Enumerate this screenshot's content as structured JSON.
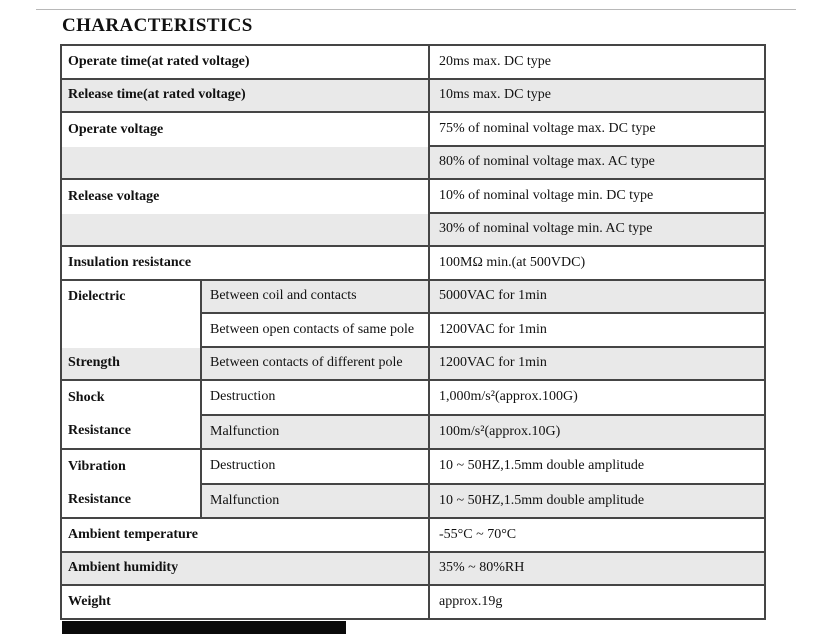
{
  "page": {
    "title": "CHARACTERISTICS"
  },
  "colors": {
    "row_shade": "#e9e9e9",
    "table_border": "#454545",
    "bottom_bar": "#0a0a0a",
    "text": "#111111"
  },
  "table": {
    "rows": [
      {
        "label": "Operate time(at rated voltage)",
        "value": "20ms max. DC type"
      },
      {
        "label": "Release time(at rated voltage)",
        "value": "10ms max. DC type"
      },
      {
        "label": "Operate voltage",
        "value": "75% of nominal voltage max. DC type"
      },
      {
        "label": "",
        "value": "80% of nominal voltage max. AC type"
      },
      {
        "label": "Release voltage",
        "value": "10% of nominal voltage min. DC type"
      },
      {
        "label": "",
        "value": "30% of nominal voltage min. AC type"
      },
      {
        "label": "Insulation resistance",
        "value": "100MΩ min.(at 500VDC)"
      },
      {
        "label": "Dielectric",
        "sub": "Between coil and contacts",
        "value": "5000VAC for 1min"
      },
      {
        "sub": "Between open contacts of same pole",
        "value": "1200VAC for 1min"
      },
      {
        "label": "Strength",
        "sub": "Between contacts of different pole",
        "value": "1200VAC for 1min"
      },
      {
        "label": "Shock",
        "label2": "Resistance",
        "sub": "Destruction",
        "value": "1,000m/s²(approx.100G)"
      },
      {
        "sub": "Malfunction",
        "value": "100m/s²(approx.10G)"
      },
      {
        "label": "Vibration",
        "label2": "Resistance",
        "sub": "Destruction",
        "value": "10 ~ 50HZ,1.5mm double amplitude"
      },
      {
        "sub": "Malfunction",
        "value": "10 ~ 50HZ,1.5mm double amplitude"
      },
      {
        "label": "Ambient temperature",
        "value": "-55°C ~ 70°C"
      },
      {
        "label": "Ambient humidity",
        "value": "35% ~ 80%RH"
      },
      {
        "label": "Weight",
        "value": "approx.19g"
      }
    ]
  }
}
